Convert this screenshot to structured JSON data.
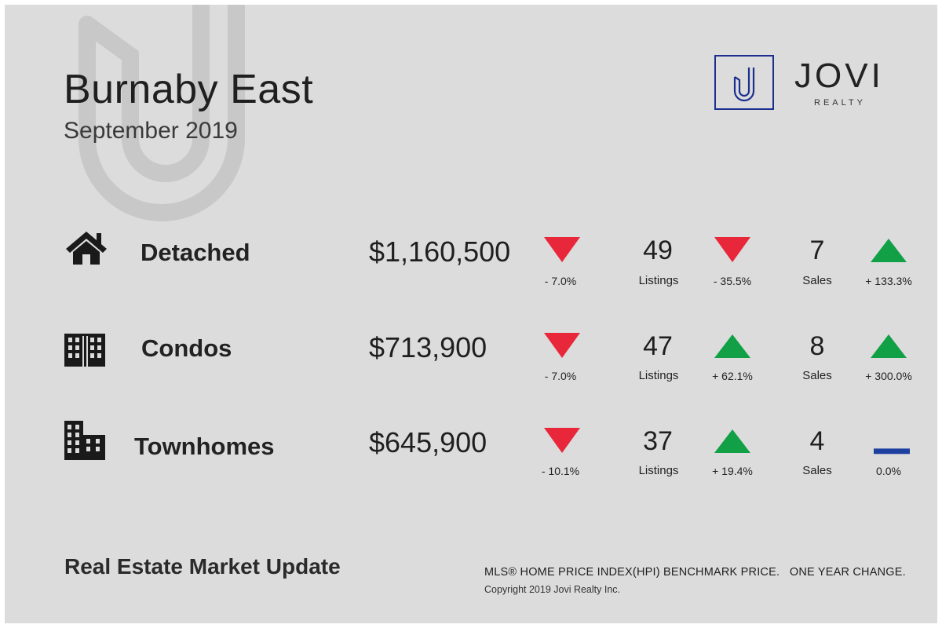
{
  "header": {
    "title": "Burnaby East",
    "subtitle": "September 2019"
  },
  "brand": {
    "logo_letter": "J",
    "name": "JOVI",
    "sub": "REALTY",
    "color": "#1c2f8f"
  },
  "colors": {
    "down": "#e8283a",
    "up": "#12a046",
    "flat": "#1c3fa0"
  },
  "rows": [
    {
      "icon": "house-icon",
      "label": "Detached",
      "price": "$1,160,500",
      "price_change": {
        "direction": "down",
        "text": "- 7.0%"
      },
      "listings": {
        "value": "49",
        "label": "Listings"
      },
      "listings_change": {
        "direction": "down",
        "text": "- 35.5%"
      },
      "sales": {
        "value": "7",
        "label": "Sales"
      },
      "sales_change": {
        "direction": "up",
        "text": "+ 133.3%"
      }
    },
    {
      "icon": "condo-building-icon",
      "label": "Condos",
      "price": "$713,900",
      "price_change": {
        "direction": "down",
        "text": "- 7.0%"
      },
      "listings": {
        "value": "47",
        "label": "Listings"
      },
      "listings_change": {
        "direction": "up",
        "text": "+ 62.1%"
      },
      "sales": {
        "value": "8",
        "label": "Sales"
      },
      "sales_change": {
        "direction": "up",
        "text": "+ 300.0%"
      }
    },
    {
      "icon": "townhome-building-icon",
      "label": "Townhomes",
      "price": "$645,900",
      "price_change": {
        "direction": "down",
        "text": "- 10.1%"
      },
      "listings": {
        "value": "37",
        "label": "Listings"
      },
      "listings_change": {
        "direction": "up",
        "text": "+ 19.4%"
      },
      "sales": {
        "value": "4",
        "label": "Sales"
      },
      "sales_change": {
        "direction": "flat",
        "text": "0.0%"
      }
    }
  ],
  "footer": {
    "title": "Real Estate Market Update",
    "note": "MLS® HOME PRICE INDEX(HPI) BENCHMARK PRICE.   ONE YEAR CHANGE.",
    "copyright": "Copyright 2019 Jovi Realty Inc."
  }
}
